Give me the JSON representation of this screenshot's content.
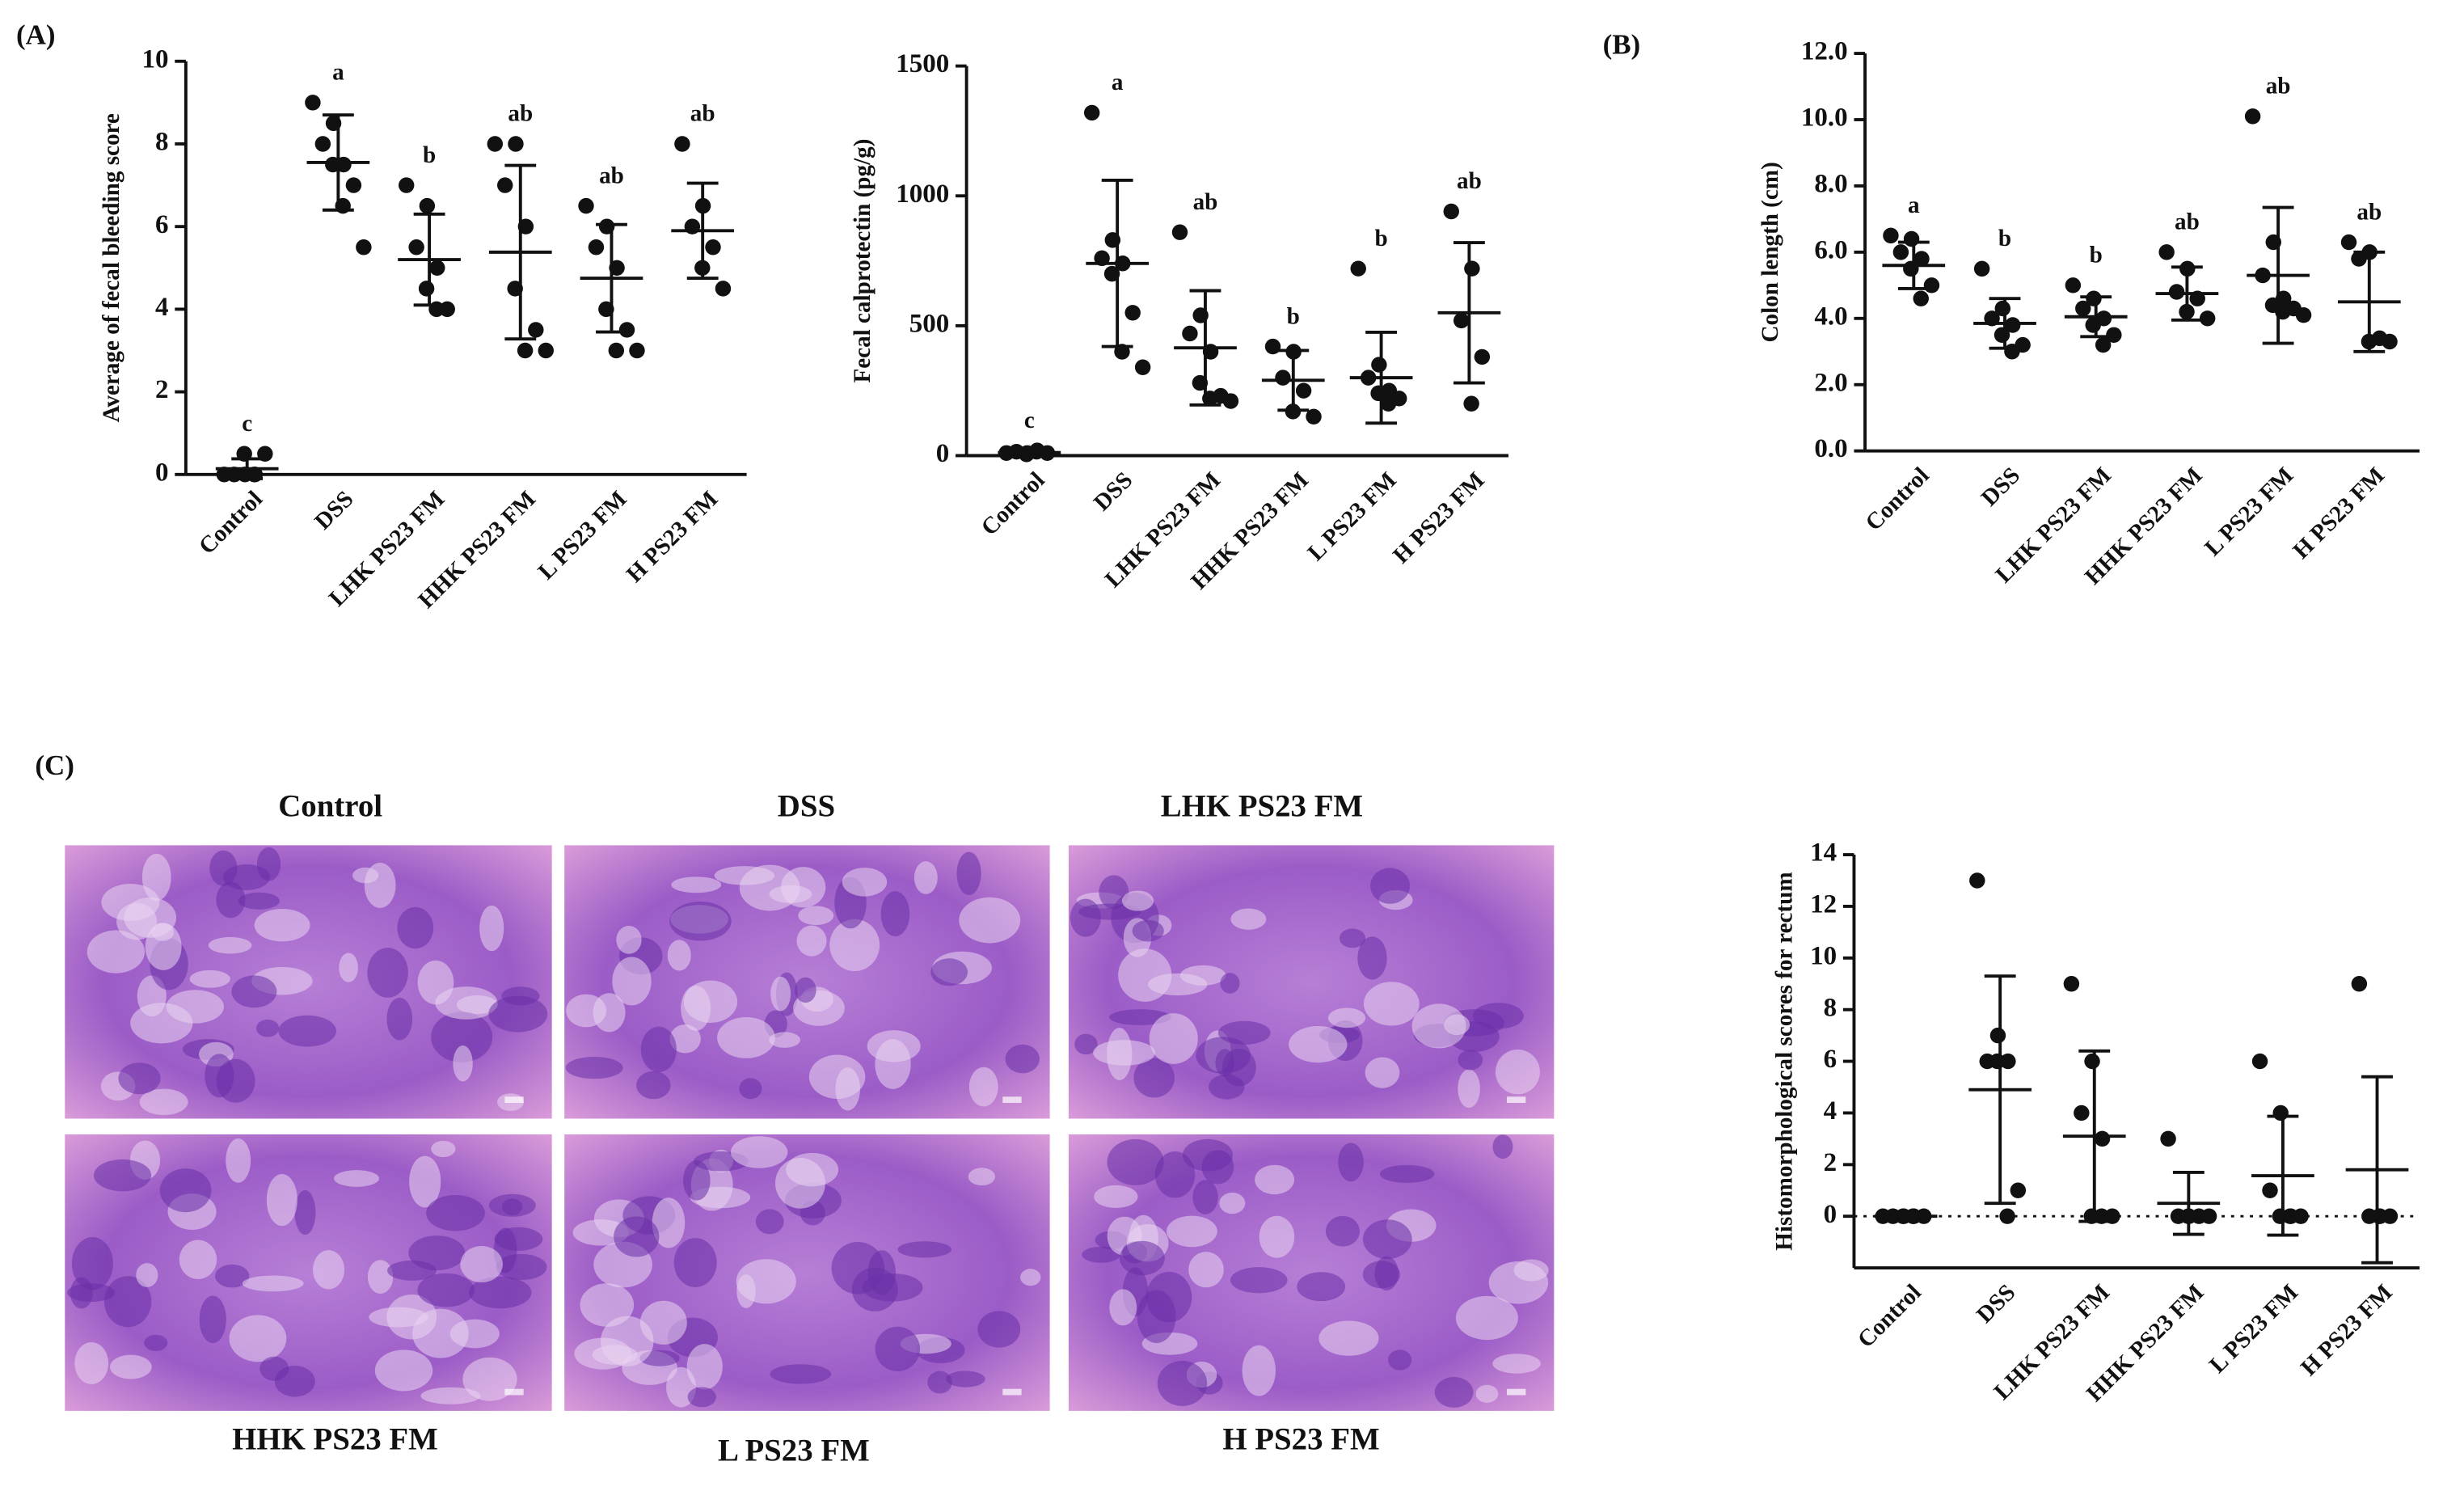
{
  "panel_labels": [
    "(A)",
    "(B)",
    "(C)"
  ],
  "micrographs": {
    "labels": [
      "Control",
      "DSS",
      "LHK PS23 FM",
      "HHK PS23 FM",
      "L PS23 FM",
      "H PS23 FM"
    ]
  },
  "chart_data": [
    {
      "type": "dotplot",
      "y_label": "Average of fecal  bleeding score",
      "categories": [
        "Control",
        "DSS",
        "LHK PS23 FM",
        "HHK PS23 FM",
        "L PS23 FM",
        "H PS23 FM"
      ],
      "points": [
        [
          0,
          0,
          0,
          0,
          0.5,
          0.5,
          0
        ],
        [
          9,
          8.5,
          8,
          7.5,
          7.5,
          7,
          6.5,
          5.5
        ],
        [
          7,
          6.5,
          5.5,
          5,
          4.5,
          4,
          4
        ],
        [
          8,
          8,
          7,
          6,
          4.5,
          3.5,
          3,
          3
        ],
        [
          6.5,
          6,
          5.5,
          5,
          4,
          3.5,
          3,
          3
        ],
        [
          8,
          6.5,
          6,
          5.5,
          5,
          4.5
        ]
      ],
      "mean": [
        0.14,
        7.55,
        5.2,
        5.38,
        4.75,
        5.9
      ],
      "sd": [
        0.24,
        1.15,
        1.1,
        2.1,
        1.3,
        1.15
      ],
      "letters": [
        "c",
        "a",
        "b",
        "ab",
        "ab",
        "ab"
      ],
      "color": "#111111",
      "ylim": [
        0,
        10
      ],
      "yticks": [
        0,
        2,
        4,
        6,
        8,
        10
      ]
    },
    {
      "type": "dotplot",
      "y_label": "Fecal calprotectin (pg/g)",
      "categories": [
        "Control",
        "DSS",
        "LHK PS23 FM",
        "HHK PS23 FM",
        "L PS23 FM",
        "H PS23 FM"
      ],
      "points": [
        [
          10,
          10,
          15,
          20,
          5,
          10,
          15
        ],
        [
          1320,
          830,
          760,
          740,
          700,
          550,
          400,
          340
        ],
        [
          860,
          540,
          470,
          400,
          280,
          230,
          220,
          210
        ],
        [
          420,
          400,
          300,
          250,
          170,
          150
        ],
        [
          720,
          350,
          300,
          250,
          240,
          220,
          200
        ],
        [
          940,
          720,
          520,
          380,
          200
        ]
      ],
      "mean": [
        12,
        740,
        415,
        290,
        300,
        550
      ],
      "sd": [
        5,
        320,
        220,
        115,
        175,
        270
      ],
      "letters": [
        "c",
        "a",
        "ab",
        "b",
        "b",
        "ab"
      ],
      "color": "#111111",
      "ylim": [
        0,
        1500
      ],
      "yticks": [
        0,
        500,
        1000,
        1500
      ]
    },
    {
      "type": "dotplot",
      "y_label": "Colon length (cm)",
      "categories": [
        "Control",
        "DSS",
        "LHK PS23 FM",
        "HHK PS23 FM",
        "L PS23 FM",
        "H PS23 FM"
      ],
      "points": [
        [
          6.5,
          6.4,
          6.0,
          5.8,
          5.5,
          5.0,
          4.6
        ],
        [
          5.5,
          4.3,
          4.0,
          3.8,
          3.5,
          3.2,
          3.0
        ],
        [
          5.0,
          4.6,
          4.3,
          4.0,
          3.8,
          3.5,
          3.2
        ],
        [
          6.0,
          5.5,
          4.8,
          4.6,
          4.2,
          4.0
        ],
        [
          10.1,
          6.3,
          5.3,
          4.6,
          4.4,
          4.3,
          4.2,
          4.1
        ],
        [
          6.3,
          6.0,
          5.8,
          3.4,
          3.3,
          3.3
        ]
      ],
      "mean": [
        5.6,
        3.85,
        4.05,
        4.75,
        5.3,
        4.5
      ],
      "sd": [
        0.7,
        0.75,
        0.6,
        0.8,
        2.05,
        1.5
      ],
      "letters": [
        "a",
        "b",
        "b",
        "ab",
        "ab",
        "ab"
      ],
      "color": "#111111",
      "ylim": [
        0,
        12
      ],
      "yticks": [
        {
          "value": 0,
          "label": "0.0"
        },
        {
          "value": 2,
          "label": "2.0"
        },
        {
          "value": 4,
          "label": "4.0"
        },
        {
          "value": 6,
          "label": "6.0"
        },
        {
          "value": 8,
          "label": "8.0"
        },
        {
          "value": 10,
          "label": "10.0"
        },
        {
          "value": 12,
          "label": "12.0"
        }
      ]
    },
    {
      "type": "dotplot",
      "y_label": "Histomorphological scores for rectum",
      "categories": [
        "Control",
        "DSS",
        "LHK PS23 FM",
        "HHK PS23 FM",
        "L PS23 FM",
        "H PS23 FM"
      ],
      "points": [
        [
          0,
          0,
          0,
          0,
          0,
          0,
          0
        ],
        [
          13,
          7,
          6,
          6,
          6,
          1,
          0
        ],
        [
          9,
          6,
          4,
          3,
          0,
          0,
          0
        ],
        [
          3,
          0,
          0,
          0,
          0,
          0
        ],
        [
          6,
          4,
          1,
          0,
          0,
          0,
          0
        ],
        [
          9,
          0,
          0,
          0,
          0
        ]
      ],
      "mean": [
        0,
        4.9,
        3.1,
        0.5,
        1.57,
        1.8
      ],
      "sd": [
        0,
        4.4,
        3.3,
        1.2,
        2.3,
        3.6
      ],
      "color": "#111111",
      "reference_line": 0,
      "ylim": [
        -2,
        14
      ],
      "yticks": [
        0,
        2,
        4,
        6,
        8,
        10,
        12,
        14
      ]
    }
  ]
}
